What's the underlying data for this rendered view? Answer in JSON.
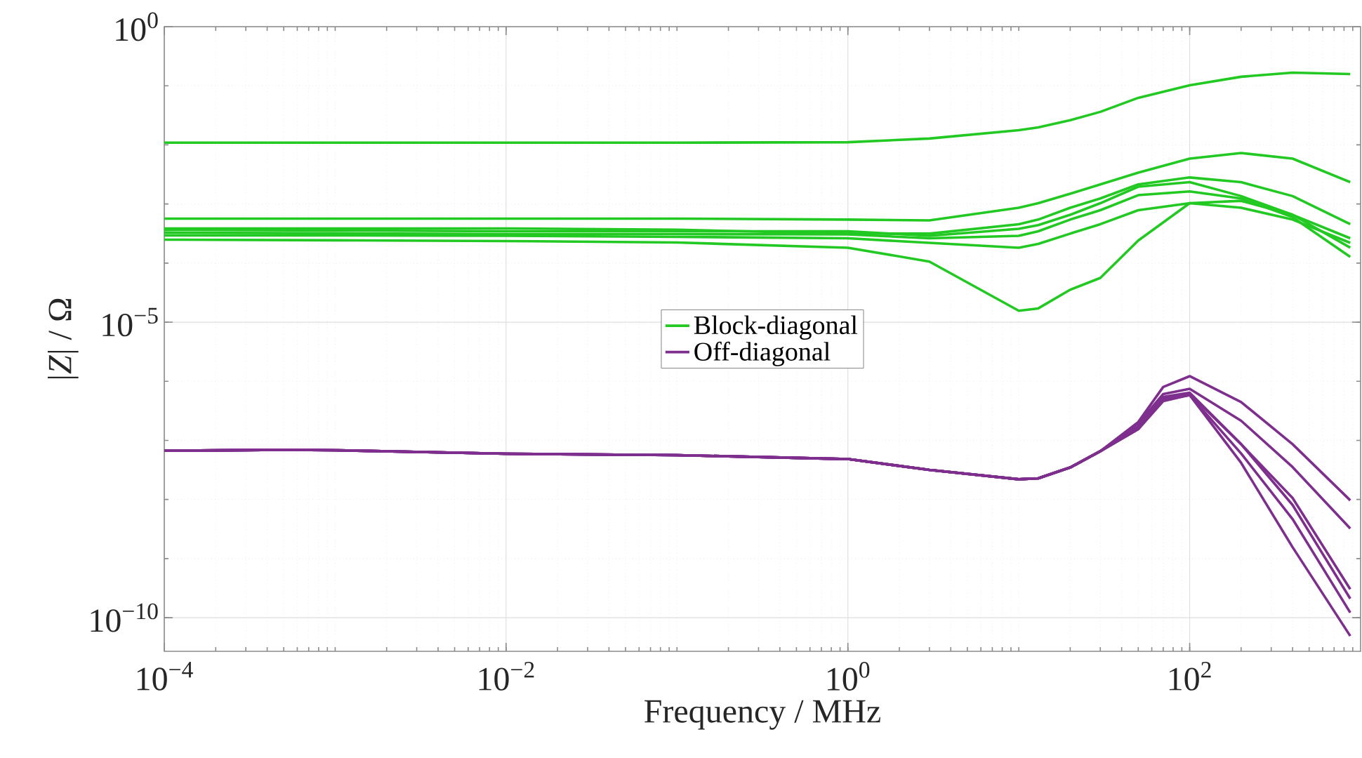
{
  "chart_data": {
    "type": "line",
    "xlabel": "Frequency / MHz",
    "ylabel": "|*Z*| / Ω",
    "log": "xy",
    "grid": true,
    "legend": "center",
    "xlim": [
      0.0001,
      1000
    ],
    "ylim": [
      2.7e-11,
      1
    ],
    "xticks": [
      {
        "value": 0.0001,
        "label": "10$^{−4}$"
      },
      {
        "value": 0.01,
        "label": "10$^{−2}$"
      },
      {
        "value": 1,
        "label": "10$^{0}$"
      },
      {
        "value": 100,
        "label": "10$^{2}$"
      }
    ],
    "yticks": [
      {
        "value": 1e-10,
        "label": "10$^{−10}$"
      },
      {
        "value": 1e-05,
        "label": "10$^{−5}$"
      },
      {
        "value": 1,
        "label": "10$^{0}$"
      }
    ],
    "series": [
      {
        "name": "Block-diagonal",
        "color": "#22c922",
        "x": [
          0.0001,
          0.001,
          0.01,
          0.1,
          1,
          3,
          10,
          13,
          20,
          30,
          50,
          100,
          200,
          400,
          870
        ],
        "values": [
          0.0109,
          0.0109,
          0.0109,
          0.0109,
          0.0111,
          0.0128,
          0.0177,
          0.0198,
          0.0261,
          0.0362,
          0.0625,
          0.102,
          0.142,
          0.167,
          0.158
        ]
      },
      {
        "color": "#22c922",
        "x": [
          0.0001,
          0.001,
          0.01,
          0.1,
          1,
          3,
          10,
          13,
          20,
          30,
          50,
          100,
          200,
          400,
          870
        ],
        "values": [
          0.000566,
          0.000566,
          0.000566,
          0.000566,
          0.000545,
          0.000527,
          0.000863,
          0.00103,
          0.00149,
          0.00214,
          0.00339,
          0.00585,
          0.00728,
          0.00585,
          0.00234
        ]
      },
      {
        "color": "#22c922",
        "x": [
          0.0001,
          0.001,
          0.01,
          0.1,
          1,
          3,
          10,
          13,
          20,
          30,
          50,
          100,
          200,
          400,
          870
        ],
        "values": [
          0.000386,
          0.000386,
          0.000386,
          0.000366,
          0.000315,
          0.000315,
          0.000455,
          0.000545,
          0.000863,
          0.00124,
          0.00214,
          0.00281,
          0.00234,
          0.00136,
          0.000455
        ]
      },
      {
        "color": "#22c922",
        "x": [
          0.0001,
          0.001,
          0.01,
          0.1,
          1,
          3,
          10,
          13,
          20,
          30,
          50,
          100,
          200,
          400,
          870
        ],
        "values": [
          0.000366,
          0.000356,
          0.000346,
          0.000346,
          0.000346,
          0.000289,
          0.00038,
          0.000438,
          0.000656,
          0.00103,
          0.00196,
          0.00234,
          0.00136,
          0.000656,
          0.000182
        ]
      },
      {
        "color": "#22c922",
        "x": [
          0.0001,
          0.001,
          0.01,
          0.1,
          1,
          3,
          10,
          13,
          20,
          30,
          50,
          100,
          200,
          400,
          870
        ],
        "values": [
          0.000328,
          0.000319,
          0.00031,
          0.00031,
          0.000305,
          0.000263,
          0.000289,
          0.000346,
          0.000545,
          0.000785,
          0.00141,
          0.00163,
          0.00124,
          0.000598,
          0.000127
        ]
      },
      {
        "color": "#22c922",
        "x": [
          0.0001,
          0.001,
          0.01,
          0.1,
          1,
          3,
          10,
          13,
          20,
          30,
          50,
          100,
          200,
          400,
          870
        ],
        "values": [
          0.000294,
          0.000294,
          0.000289,
          0.000278,
          0.000263,
          0.00022,
          0.000182,
          0.000211,
          0.000315,
          0.000455,
          0.000785,
          0.00103,
          0.000863,
          0.000545,
          0.00022
        ]
      },
      {
        "color": "#22c922",
        "x": [
          0.0001,
          0.001,
          0.01,
          0.1,
          1,
          3,
          10,
          13,
          20,
          30,
          50,
          100,
          200,
          400,
          870
        ],
        "values": [
          0.000249,
          0.000243,
          0.000236,
          0.000223,
          0.000182,
          0.000106,
          1.56e-05,
          1.71e-05,
          3.54e-05,
          5.6e-05,
          0.00024,
          0.00103,
          0.00113,
          0.000656,
          0.000263
        ]
      },
      {
        "name": "Off-diagonal",
        "color": "#7e2f8e",
        "x": [
          0.0001,
          0.0005,
          0.001,
          0.01,
          0.1,
          1,
          3,
          10,
          13,
          20,
          30,
          50,
          70,
          100,
          200,
          400,
          870
        ],
        "values": [
          6.67e-08,
          6.93e-08,
          6.82e-08,
          5.94e-08,
          5.63e-08,
          4.83e-08,
          3.17e-08,
          2.2e-08,
          2.28e-08,
          3.48e-08,
          6.56e-08,
          2.04e-07,
          8e-07,
          1.22e-06,
          4.45e-07,
          8.63e-08,
          9.68e-09
        ]
      },
      {
        "color": "#7e2f8e",
        "x": [
          0.0001,
          0.0005,
          0.001,
          0.01,
          0.1,
          1,
          3,
          10,
          13,
          20,
          30,
          50,
          70,
          100,
          200,
          400,
          870
        ],
        "values": [
          6.67e-08,
          6.93e-08,
          6.82e-08,
          5.94e-08,
          5.63e-08,
          4.83e-08,
          3.17e-08,
          2.2e-08,
          2.28e-08,
          3.48e-08,
          6.56e-08,
          1.93e-07,
          6.08e-07,
          7.44e-07,
          2.15e-07,
          3.54e-08,
          3.24e-09
        ]
      },
      {
        "color": "#7e2f8e",
        "x": [
          0.0001,
          0.0005,
          0.001,
          0.01,
          0.1,
          1,
          3,
          10,
          13,
          20,
          30,
          50,
          70,
          100,
          200,
          400,
          870
        ],
        "values": [
          6.67e-08,
          6.93e-08,
          6.82e-08,
          5.94e-08,
          5.63e-08,
          4.83e-08,
          3.17e-08,
          2.2e-08,
          2.28e-08,
          3.48e-08,
          6.56e-08,
          1.73e-07,
          5.45e-07,
          6.42e-07,
          8.63e-08,
          1.06e-08,
          3.03e-10
        ]
      },
      {
        "color": "#7e2f8e",
        "x": [
          0.0001,
          0.0005,
          0.001,
          0.01,
          0.1,
          1,
          3,
          10,
          13,
          20,
          30,
          50,
          70,
          100,
          200,
          400,
          870
        ],
        "values": [
          6.67e-08,
          6.93e-08,
          6.82e-08,
          5.94e-08,
          5.63e-08,
          4.83e-08,
          3.17e-08,
          2.2e-08,
          2.28e-08,
          3.48e-08,
          6.56e-08,
          1.64e-07,
          5.16e-07,
          6.18e-07,
          8.63e-08,
          8.07e-09,
          2.1e-10
        ]
      },
      {
        "color": "#7e2f8e",
        "x": [
          0.0001,
          0.0005,
          0.001,
          0.01,
          0.1,
          1,
          3,
          10,
          13,
          20,
          30,
          50,
          70,
          100,
          200,
          400,
          870
        ],
        "values": [
          6.67e-08,
          6.93e-08,
          6.82e-08,
          5.94e-08,
          5.63e-08,
          4.83e-08,
          3.17e-08,
          2.2e-08,
          2.28e-08,
          3.48e-08,
          6.56e-08,
          1.55e-07,
          4.89e-07,
          5.85e-07,
          6.01e-08,
          4.67e-09,
          1.22e-10
        ]
      },
      {
        "color": "#7e2f8e",
        "x": [
          0.0001,
          0.0005,
          0.001,
          0.01,
          0.1,
          1,
          3,
          10,
          13,
          20,
          30,
          50,
          70,
          100,
          200,
          400,
          870
        ],
        "values": [
          6.67e-08,
          6.93e-08,
          6.82e-08,
          5.94e-08,
          5.63e-08,
          4.83e-08,
          3.17e-08,
          2.2e-08,
          2.28e-08,
          3.48e-08,
          6.56e-08,
          1.55e-07,
          4.62e-07,
          5.85e-07,
          4.17e-08,
          1.56e-09,
          4.91e-11
        ]
      }
    ]
  }
}
